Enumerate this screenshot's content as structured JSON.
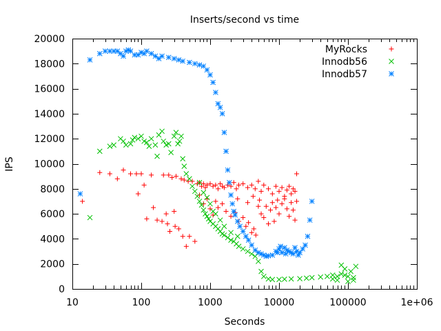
{
  "chart_data": {
    "type": "scatter",
    "title": "Inserts/second vs time",
    "xlabel": "Seconds",
    "ylabel": "IPS",
    "x_scale": "log",
    "xlim": [
      10,
      1000000
    ],
    "ylim": [
      0,
      20000
    ],
    "x_ticks": [
      10,
      100,
      1000,
      10000,
      100000,
      1000000
    ],
    "x_tick_labels": [
      "10",
      "100",
      "1000",
      "10000",
      "100000",
      "1e+06"
    ],
    "y_ticks": [
      0,
      2000,
      4000,
      6000,
      8000,
      10000,
      12000,
      14000,
      16000,
      18000,
      20000
    ],
    "y_tick_labels": [
      "0",
      "2000",
      "4000",
      "6000",
      "8000",
      "10000",
      "12000",
      "14000",
      "16000",
      "18000",
      "20000"
    ],
    "grid": false,
    "legend_position": "top-right",
    "series": [
      {
        "name": "MyRocks",
        "marker": "plus",
        "color": "#ff0000",
        "points": [
          [
            14,
            7000
          ],
          [
            25,
            9300
          ],
          [
            35,
            9200
          ],
          [
            45,
            8800
          ],
          [
            55,
            9500
          ],
          [
            70,
            9200
          ],
          [
            85,
            9200
          ],
          [
            90,
            7600
          ],
          [
            100,
            9200
          ],
          [
            110,
            8300
          ],
          [
            120,
            5600
          ],
          [
            140,
            9100
          ],
          [
            150,
            6500
          ],
          [
            170,
            5500
          ],
          [
            200,
            5400
          ],
          [
            210,
            9100
          ],
          [
            230,
            6000
          ],
          [
            240,
            5200
          ],
          [
            250,
            9100
          ],
          [
            260,
            4600
          ],
          [
            280,
            8900
          ],
          [
            300,
            6200
          ],
          [
            310,
            5000
          ],
          [
            320,
            9000
          ],
          [
            350,
            4800
          ],
          [
            380,
            8800
          ],
          [
            400,
            4200
          ],
          [
            420,
            8700
          ],
          [
            450,
            3400
          ],
          [
            480,
            8600
          ],
          [
            500,
            4200
          ],
          [
            550,
            8600
          ],
          [
            600,
            3800
          ],
          [
            650,
            8400
          ],
          [
            700,
            8500
          ],
          [
            750,
            8200
          ],
          [
            800,
            8400
          ],
          [
            850,
            8100
          ],
          [
            900,
            8300
          ],
          [
            1000,
            8400
          ],
          [
            1100,
            8200
          ],
          [
            1200,
            8300
          ],
          [
            1300,
            8000
          ],
          [
            1400,
            8400
          ],
          [
            1500,
            8200
          ],
          [
            1600,
            8100
          ],
          [
            1800,
            8300
          ],
          [
            2000,
            8200
          ],
          [
            2200,
            8500
          ],
          [
            2400,
            8000
          ],
          [
            2600,
            8300
          ],
          [
            3000,
            8400
          ],
          [
            3500,
            8100
          ],
          [
            4000,
            8300
          ],
          [
            4500,
            8000
          ],
          [
            5000,
            8600
          ],
          [
            5500,
            7800
          ],
          [
            6000,
            8300
          ],
          [
            7000,
            8000
          ],
          [
            8000,
            7600
          ],
          [
            9000,
            8200
          ],
          [
            10000,
            7800
          ],
          [
            11000,
            8100
          ],
          [
            12000,
            7400
          ],
          [
            13000,
            7900
          ],
          [
            14000,
            8200
          ],
          [
            15000,
            7600
          ],
          [
            16000,
            8000
          ],
          [
            17000,
            7800
          ],
          [
            18000,
            9200
          ],
          [
            1200,
            7000
          ],
          [
            1300,
            6500
          ],
          [
            1500,
            6800
          ],
          [
            1700,
            6200
          ],
          [
            2000,
            5800
          ],
          [
            2300,
            6100
          ],
          [
            2600,
            5400
          ],
          [
            3000,
            5700
          ],
          [
            3300,
            5000
          ],
          [
            3600,
            5300
          ],
          [
            4000,
            4500
          ],
          [
            4300,
            4800
          ],
          [
            4600,
            4300
          ],
          [
            5000,
            6600
          ],
          [
            5500,
            6000
          ],
          [
            6000,
            5700
          ],
          [
            6500,
            6600
          ],
          [
            7000,
            5200
          ],
          [
            7500,
            6300
          ],
          [
            8000,
            6900
          ],
          [
            8500,
            5400
          ],
          [
            9000,
            6500
          ],
          [
            9500,
            7100
          ],
          [
            10000,
            6000
          ],
          [
            11000,
            6800
          ],
          [
            12000,
            7200
          ],
          [
            13000,
            6400
          ],
          [
            14000,
            5800
          ],
          [
            15000,
            6900
          ],
          [
            16000,
            6300
          ],
          [
            17000,
            5500
          ],
          [
            18000,
            7000
          ],
          [
            900,
            7200
          ],
          [
            1000,
            6400
          ],
          [
            1100,
            5900
          ],
          [
            800,
            6800
          ],
          [
            700,
            7500
          ],
          [
            2500,
            7200
          ],
          [
            3500,
            6900
          ],
          [
            4200,
            7400
          ],
          [
            5200,
            7100
          ]
        ]
      },
      {
        "name": "Innodb56",
        "marker": "cross",
        "color": "#00c000",
        "points": [
          [
            18,
            5700
          ],
          [
            25,
            11000
          ],
          [
            35,
            11400
          ],
          [
            40,
            11500
          ],
          [
            50,
            12000
          ],
          [
            55,
            11800
          ],
          [
            60,
            11500
          ],
          [
            70,
            11600
          ],
          [
            75,
            11900
          ],
          [
            80,
            12100
          ],
          [
            90,
            12000
          ],
          [
            100,
            12200
          ],
          [
            110,
            11800
          ],
          [
            120,
            11700
          ],
          [
            130,
            11400
          ],
          [
            140,
            12000
          ],
          [
            160,
            11500
          ],
          [
            170,
            10600
          ],
          [
            180,
            12300
          ],
          [
            200,
            12600
          ],
          [
            210,
            11800
          ],
          [
            230,
            11500
          ],
          [
            250,
            11600
          ],
          [
            270,
            10900
          ],
          [
            300,
            12200
          ],
          [
            320,
            12500
          ],
          [
            340,
            11600
          ],
          [
            360,
            11800
          ],
          [
            380,
            12200
          ],
          [
            400,
            10400
          ],
          [
            420,
            9800
          ],
          [
            450,
            9200
          ],
          [
            500,
            8800
          ],
          [
            550,
            8200
          ],
          [
            600,
            7800
          ],
          [
            650,
            7400
          ],
          [
            700,
            7000
          ],
          [
            750,
            6700
          ],
          [
            800,
            6300
          ],
          [
            850,
            6000
          ],
          [
            900,
            5800
          ],
          [
            950,
            5600
          ],
          [
            1000,
            5400
          ],
          [
            1100,
            5200
          ],
          [
            1200,
            5000
          ],
          [
            1300,
            4800
          ],
          [
            1400,
            4600
          ],
          [
            1500,
            4400
          ],
          [
            1600,
            4300
          ],
          [
            1800,
            4100
          ],
          [
            2000,
            3900
          ],
          [
            2200,
            3800
          ],
          [
            2400,
            3600
          ],
          [
            2600,
            3400
          ],
          [
            3000,
            3200
          ],
          [
            3500,
            3000
          ],
          [
            4000,
            2800
          ],
          [
            4500,
            2600
          ],
          [
            5000,
            2200
          ],
          [
            5500,
            1400
          ],
          [
            6000,
            1000
          ],
          [
            7000,
            800
          ],
          [
            8000,
            750
          ],
          [
            10000,
            750
          ],
          [
            12000,
            780
          ],
          [
            15000,
            800
          ],
          [
            20000,
            820
          ],
          [
            25000,
            860
          ],
          [
            30000,
            900
          ],
          [
            40000,
            950
          ],
          [
            50000,
            1000
          ],
          [
            60000,
            1100
          ],
          [
            70000,
            1000
          ],
          [
            80000,
            1200
          ],
          [
            90000,
            1100
          ],
          [
            100000,
            1000
          ],
          [
            120000,
            900
          ],
          [
            130000,
            1800
          ],
          [
            80000,
            1900
          ],
          [
            90000,
            1600
          ],
          [
            110000,
            1400
          ],
          [
            70000,
            700
          ],
          [
            100000,
            600
          ],
          [
            120000,
            700
          ],
          [
            60000,
            800
          ],
          [
            1000,
            6800
          ],
          [
            1100,
            6200
          ],
          [
            900,
            7300
          ],
          [
            700,
            8500
          ],
          [
            800,
            7700
          ],
          [
            1200,
            6000
          ],
          [
            1400,
            5500
          ],
          [
            1600,
            5000
          ],
          [
            2000,
            4500
          ],
          [
            2500,
            4200
          ]
        ]
      },
      {
        "name": "Innodb57",
        "marker": "star",
        "color": "#0080ff",
        "points": [
          [
            13,
            7600
          ],
          [
            18,
            18300
          ],
          [
            25,
            18800
          ],
          [
            30,
            19000
          ],
          [
            35,
            19000
          ],
          [
            40,
            19000
          ],
          [
            45,
            19000
          ],
          [
            50,
            18800
          ],
          [
            55,
            18600
          ],
          [
            60,
            19000
          ],
          [
            65,
            19100
          ],
          [
            70,
            19000
          ],
          [
            80,
            18700
          ],
          [
            90,
            18700
          ],
          [
            100,
            18900
          ],
          [
            110,
            18800
          ],
          [
            120,
            19000
          ],
          [
            140,
            18800
          ],
          [
            160,
            18600
          ],
          [
            180,
            18400
          ],
          [
            200,
            18600
          ],
          [
            250,
            18500
          ],
          [
            300,
            18400
          ],
          [
            350,
            18300
          ],
          [
            400,
            18200
          ],
          [
            500,
            18100
          ],
          [
            600,
            18000
          ],
          [
            700,
            17900
          ],
          [
            800,
            17800
          ],
          [
            900,
            17500
          ],
          [
            1000,
            17100
          ],
          [
            1100,
            16500
          ],
          [
            1200,
            15700
          ],
          [
            1300,
            14800
          ],
          [
            1400,
            14500
          ],
          [
            1500,
            14000
          ],
          [
            1600,
            12500
          ],
          [
            1700,
            11000
          ],
          [
            1800,
            9500
          ],
          [
            1900,
            8500
          ],
          [
            2000,
            7500
          ],
          [
            2100,
            6800
          ],
          [
            2200,
            6200
          ],
          [
            2300,
            5900
          ],
          [
            2500,
            5400
          ],
          [
            2700,
            5000
          ],
          [
            3000,
            4600
          ],
          [
            3300,
            4200
          ],
          [
            3600,
            3900
          ],
          [
            4000,
            3500
          ],
          [
            4500,
            3100
          ],
          [
            5000,
            2900
          ],
          [
            5500,
            2800
          ],
          [
            6000,
            2700
          ],
          [
            6500,
            2600
          ],
          [
            7000,
            2650
          ],
          [
            8000,
            2700
          ],
          [
            9000,
            3000
          ],
          [
            10000,
            3200
          ],
          [
            11000,
            2900
          ],
          [
            12000,
            3300
          ],
          [
            13000,
            3100
          ],
          [
            14000,
            3000
          ],
          [
            15000,
            2900
          ],
          [
            16000,
            2800
          ],
          [
            18000,
            3000
          ],
          [
            20000,
            2900
          ],
          [
            22000,
            3200
          ],
          [
            24000,
            3500
          ],
          [
            26000,
            4200
          ],
          [
            28000,
            5500
          ],
          [
            30000,
            7000
          ],
          [
            9500,
            2900
          ],
          [
            10500,
            3400
          ],
          [
            12500,
            2800
          ],
          [
            17000,
            3300
          ],
          [
            19000,
            2700
          ]
        ]
      }
    ]
  }
}
